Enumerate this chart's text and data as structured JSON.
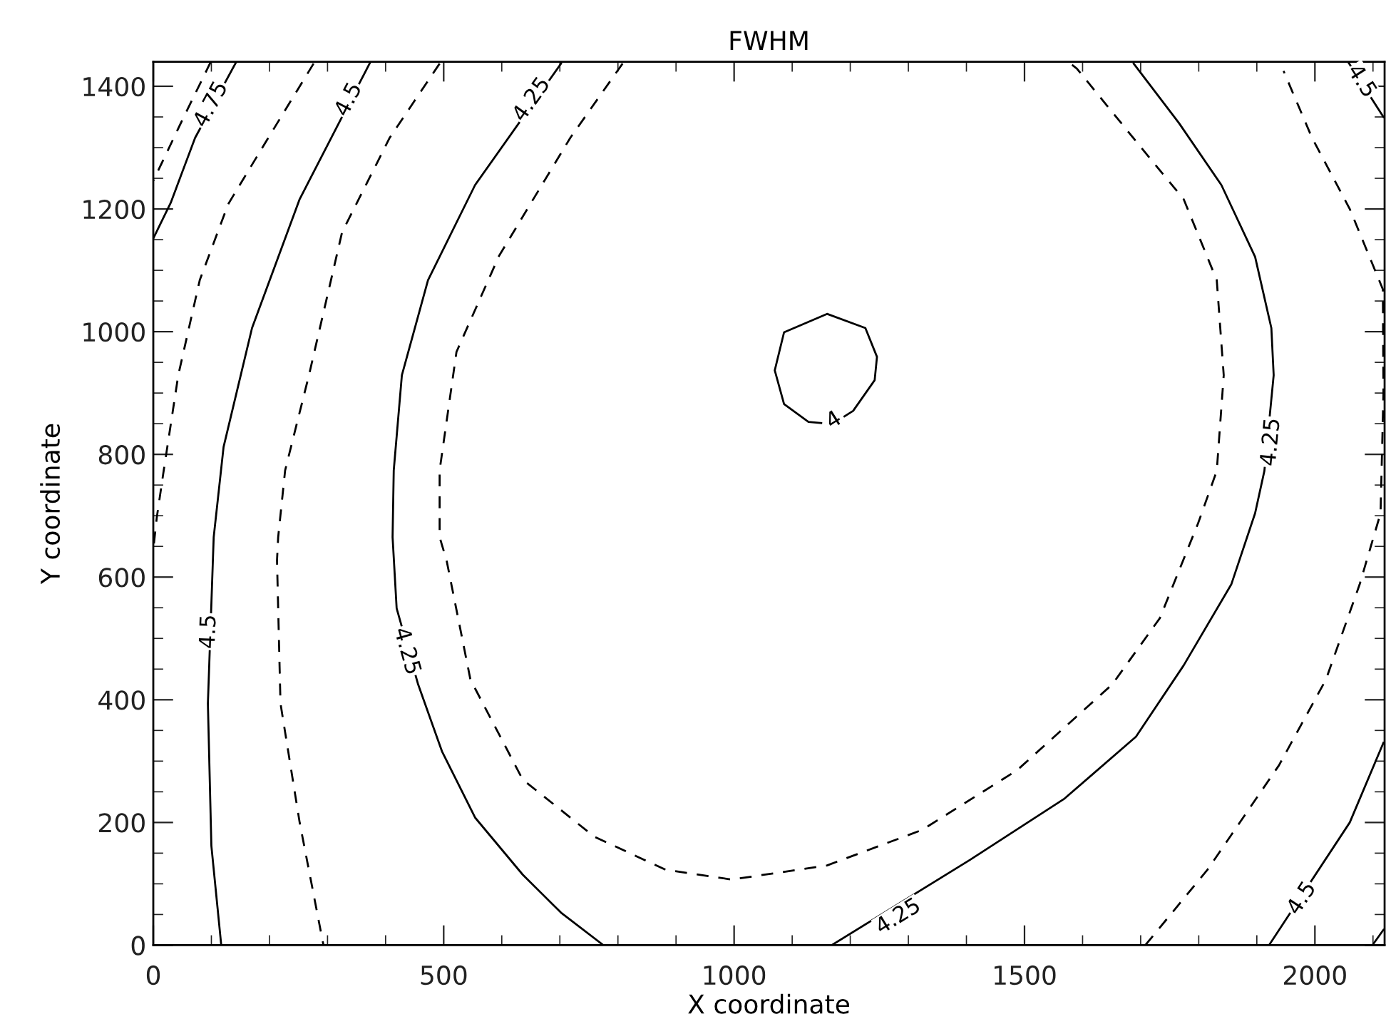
{
  "chart_data": {
    "type": "line",
    "title": "FWHM",
    "xlabel": "X coordinate",
    "ylabel": "Y coordinate",
    "xlim": [
      0,
      2120
    ],
    "ylim": [
      0,
      1440
    ],
    "xticks": [
      0,
      {
        "value": 100,
        "label": null
      },
      {
        "value": 200,
        "label": null
      },
      {
        "value": 300,
        "label": null
      },
      {
        "value": 400,
        "label": null
      },
      500,
      {
        "value": 600,
        "label": null
      },
      {
        "value": 700,
        "label": null
      },
      {
        "value": 800,
        "label": null
      },
      {
        "value": 900,
        "label": null
      },
      1000,
      {
        "value": 1100,
        "label": null
      },
      {
        "value": 1200,
        "label": null
      },
      {
        "value": 1300,
        "label": null
      },
      {
        "value": 1400,
        "label": null
      },
      1500,
      {
        "value": 1600,
        "label": null
      },
      {
        "value": 1700,
        "label": null
      },
      {
        "value": 1800,
        "label": null
      },
      {
        "value": 1900,
        "label": null
      },
      2000,
      {
        "value": 2100,
        "label": null
      }
    ],
    "yticks": [
      0,
      {
        "value": 50,
        "label": null
      },
      {
        "value": 100,
        "label": null
      },
      {
        "value": 150,
        "label": null
      },
      200,
      {
        "value": 250,
        "label": null
      },
      {
        "value": 300,
        "label": null
      },
      {
        "value": 350,
        "label": null
      },
      400,
      {
        "value": 450,
        "label": null
      },
      {
        "value": 500,
        "label": null
      },
      {
        "value": 550,
        "label": null
      },
      600,
      {
        "value": 650,
        "label": null
      },
      {
        "value": 700,
        "label": null
      },
      {
        "value": 750,
        "label": null
      },
      800,
      {
        "value": 850,
        "label": null
      },
      {
        "value": 900,
        "label": null
      },
      {
        "value": 950,
        "label": null
      },
      1000,
      {
        "value": 1050,
        "label": null
      },
      {
        "value": 1100,
        "label": null
      },
      {
        "value": 1150,
        "label": null
      },
      1200,
      {
        "value": 1250,
        "label": null
      },
      {
        "value": 1300,
        "label": null
      },
      {
        "value": 1350,
        "label": null
      },
      1400
    ],
    "grid": false,
    "legend": false,
    "series": [
      {
        "color": "#000000",
        "line_style": "dashed",
        "x": [
          99,
          50,
          0
        ],
        "values": [
          1440,
          1345,
          1246
        ]
      },
      {
        "color": "#000000",
        "line_style": "solid",
        "x": [
          143,
          72,
          30,
          0
        ],
        "values": [
          1440,
          1316,
          1210,
          1152
        ]
      },
      {
        "color": "#000000",
        "line_style": "dashed",
        "x": [
          276,
          198,
          129,
          80,
          43,
          18,
          6,
          0
        ],
        "values": [
          1437,
          1316,
          1208,
          1084,
          929,
          774,
          697,
          645
        ]
      },
      {
        "color": "#000000",
        "line_style": "solid",
        "x": [
          374,
          252,
          170,
          121,
          104,
          94,
          100,
          117
        ],
        "values": [
          1440,
          1216,
          1006,
          812,
          665,
          394,
          162,
          0
        ]
      },
      {
        "color": "#000000",
        "line_style": "dashed",
        "x": [
          493,
          407,
          325,
          268,
          227,
          215,
          213,
          219,
          252,
          293
        ],
        "values": [
          1437,
          1316,
          1162,
          929,
          774,
          665,
          627,
          394,
          200,
          0
        ]
      },
      {
        "color": "#000000",
        "line_style": "solid",
        "x": [
          702,
          554,
          473,
          428,
          414,
          412,
          419,
          456,
          497,
          554,
          636,
          702,
          775
        ],
        "values": [
          1437,
          1239,
          1084,
          929,
          774,
          665,
          549,
          425,
          316,
          208,
          115,
          53,
          0
        ]
      },
      {
        "color": "#000000",
        "line_style": "dashed",
        "x": [
          808,
          718,
          595,
          522,
          493,
          493,
          505,
          546,
          636,
          759,
          882,
          996,
          1160,
          1324,
          1487,
          1651,
          1733,
          1799,
          1831,
          1843,
          1831,
          1774,
          1700,
          1590,
          1575
        ],
        "values": [
          1437,
          1316,
          1123,
          967,
          774,
          665,
          627,
          433,
          270,
          177,
          123,
          107,
          130,
          188,
          285,
          425,
          533,
          688,
          773,
          929,
          1084,
          1216,
          1301,
          1429,
          1440
        ]
      },
      {
        "color": "#000000",
        "line_style": "solid",
        "x": [
          1168,
          1406,
          1569,
          1692,
          1774,
          1856,
          1897,
          1913,
          1929,
          1925,
          1897,
          1839,
          1766,
          1688
        ],
        "values": [
          0,
          139,
          239,
          340,
          456,
          588,
          704,
          773,
          929,
          1006,
          1122,
          1239,
          1340,
          1437
        ]
      },
      {
        "color": "#000000",
        "line_style": "solid",
        "x": [
          1190,
          1205,
          1242,
          1246,
          1226,
          1160,
          1086,
          1070,
          1086,
          1128,
          1150
        ],
        "values": [
          862,
          871,
          921,
          959,
          1006,
          1029,
          999,
          937,
          882,
          853,
          851
        ]
      },
      {
        "color": "#000000",
        "line_style": "dashed",
        "x": [
          1708,
          1815,
          1938,
          2019,
          2077,
          2113,
          2118,
          2117,
          2060,
          1995,
          1946
        ],
        "values": [
          0,
          123,
          293,
          433,
          588,
          704,
          900,
          1069,
          1200,
          1316,
          1425
        ]
      },
      {
        "color": "#000000",
        "line_style": "solid",
        "x": [
          1921,
          2060,
          2118
        ],
        "values": [
          0,
          200,
          330
        ]
      },
      {
        "color": "#000000",
        "line_style": "solid",
        "x": [
          2057,
          2118
        ],
        "values": [
          1440,
          1350
        ]
      },
      {
        "color": "#000000",
        "line_style": "solid",
        "x": [
          2099,
          2118
        ],
        "values": [
          0,
          25
        ]
      }
    ],
    "annotations": [
      {
        "text": "4.75",
        "x": 100,
        "y": 1370
      },
      {
        "text": "4.5",
        "x": 337,
        "y": 1378
      },
      {
        "text": "4.25",
        "x": 652,
        "y": 1378
      },
      {
        "text": "4.5",
        "x": 96,
        "y": 511
      },
      {
        "text": "4.25",
        "x": 436,
        "y": 479
      },
      {
        "text": "4",
        "x": 1172,
        "y": 855
      },
      {
        "text": "4.25",
        "x": 1925,
        "y": 820
      },
      {
        "text": "4.25",
        "x": 1283,
        "y": 46
      },
      {
        "text": "4.5",
        "x": 1978,
        "y": 76
      },
      {
        "text": "4.5",
        "x": 2080,
        "y": 1408
      }
    ]
  }
}
